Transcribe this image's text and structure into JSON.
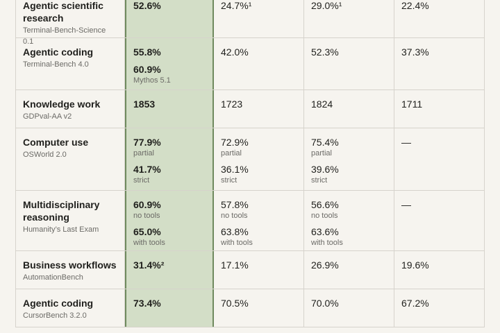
{
  "table": {
    "rows": [
      {
        "name": "Agentic scientific research",
        "benchmark": "Terminal-Bench-Science 0.1",
        "cells": [
          [
            {
              "value": "52.6%"
            }
          ],
          [
            {
              "value": "24.7%¹"
            }
          ],
          [
            {
              "value": "29.0%¹"
            }
          ],
          [
            {
              "value": "22.4%"
            }
          ]
        ]
      },
      {
        "name": "Agentic coding",
        "benchmark": "Terminal-Bench 4.0",
        "cells": [
          [
            {
              "value": "55.8%"
            },
            {
              "value": "60.9%",
              "note": "Mythos 5.1"
            }
          ],
          [
            {
              "value": "42.0%"
            }
          ],
          [
            {
              "value": "52.3%"
            }
          ],
          [
            {
              "value": "37.3%"
            }
          ]
        ]
      },
      {
        "name": "Knowledge work",
        "benchmark": "GDPval-AA v2",
        "cells": [
          [
            {
              "value": "1853"
            }
          ],
          [
            {
              "value": "1723"
            }
          ],
          [
            {
              "value": "1824"
            }
          ],
          [
            {
              "value": "1711"
            }
          ]
        ]
      },
      {
        "name": "Computer use",
        "benchmark": "OSWorld 2.0",
        "cells": [
          [
            {
              "value": "77.9%",
              "note": "partial"
            },
            {
              "value": "41.7%",
              "note": "strict"
            }
          ],
          [
            {
              "value": "72.9%",
              "note": "partial"
            },
            {
              "value": "36.1%",
              "note": "strict"
            }
          ],
          [
            {
              "value": "75.4%",
              "note": "partial"
            },
            {
              "value": "39.6%",
              "note": "strict"
            }
          ],
          [
            {
              "value": "—"
            }
          ]
        ]
      },
      {
        "name": "Multidisciplinary reasoning",
        "benchmark": "Humanity’s Last Exam",
        "cells": [
          [
            {
              "value": "60.9%",
              "note": "no tools"
            },
            {
              "value": "65.0%",
              "note": "with tools"
            }
          ],
          [
            {
              "value": "57.8%",
              "note": "no tools"
            },
            {
              "value": "63.8%",
              "note": "with tools"
            }
          ],
          [
            {
              "value": "56.6%",
              "note": "no tools"
            },
            {
              "value": "63.6%",
              "note": "with tools"
            }
          ],
          [
            {
              "value": "—"
            }
          ]
        ]
      },
      {
        "name": "Business workflows",
        "benchmark": "AutomationBench",
        "cells": [
          [
            {
              "value": "31.4%²"
            }
          ],
          [
            {
              "value": "17.1%"
            }
          ],
          [
            {
              "value": "26.9%"
            }
          ],
          [
            {
              "value": "19.6%"
            }
          ]
        ]
      },
      {
        "name": "Agentic coding",
        "benchmark": "CursorBench 3.2.0",
        "cells": [
          [
            {
              "value": "73.4%"
            }
          ],
          [
            {
              "value": "70.5%"
            }
          ],
          [
            {
              "value": "70.0%"
            }
          ],
          [
            {
              "value": "67.2%"
            }
          ]
        ]
      }
    ]
  }
}
